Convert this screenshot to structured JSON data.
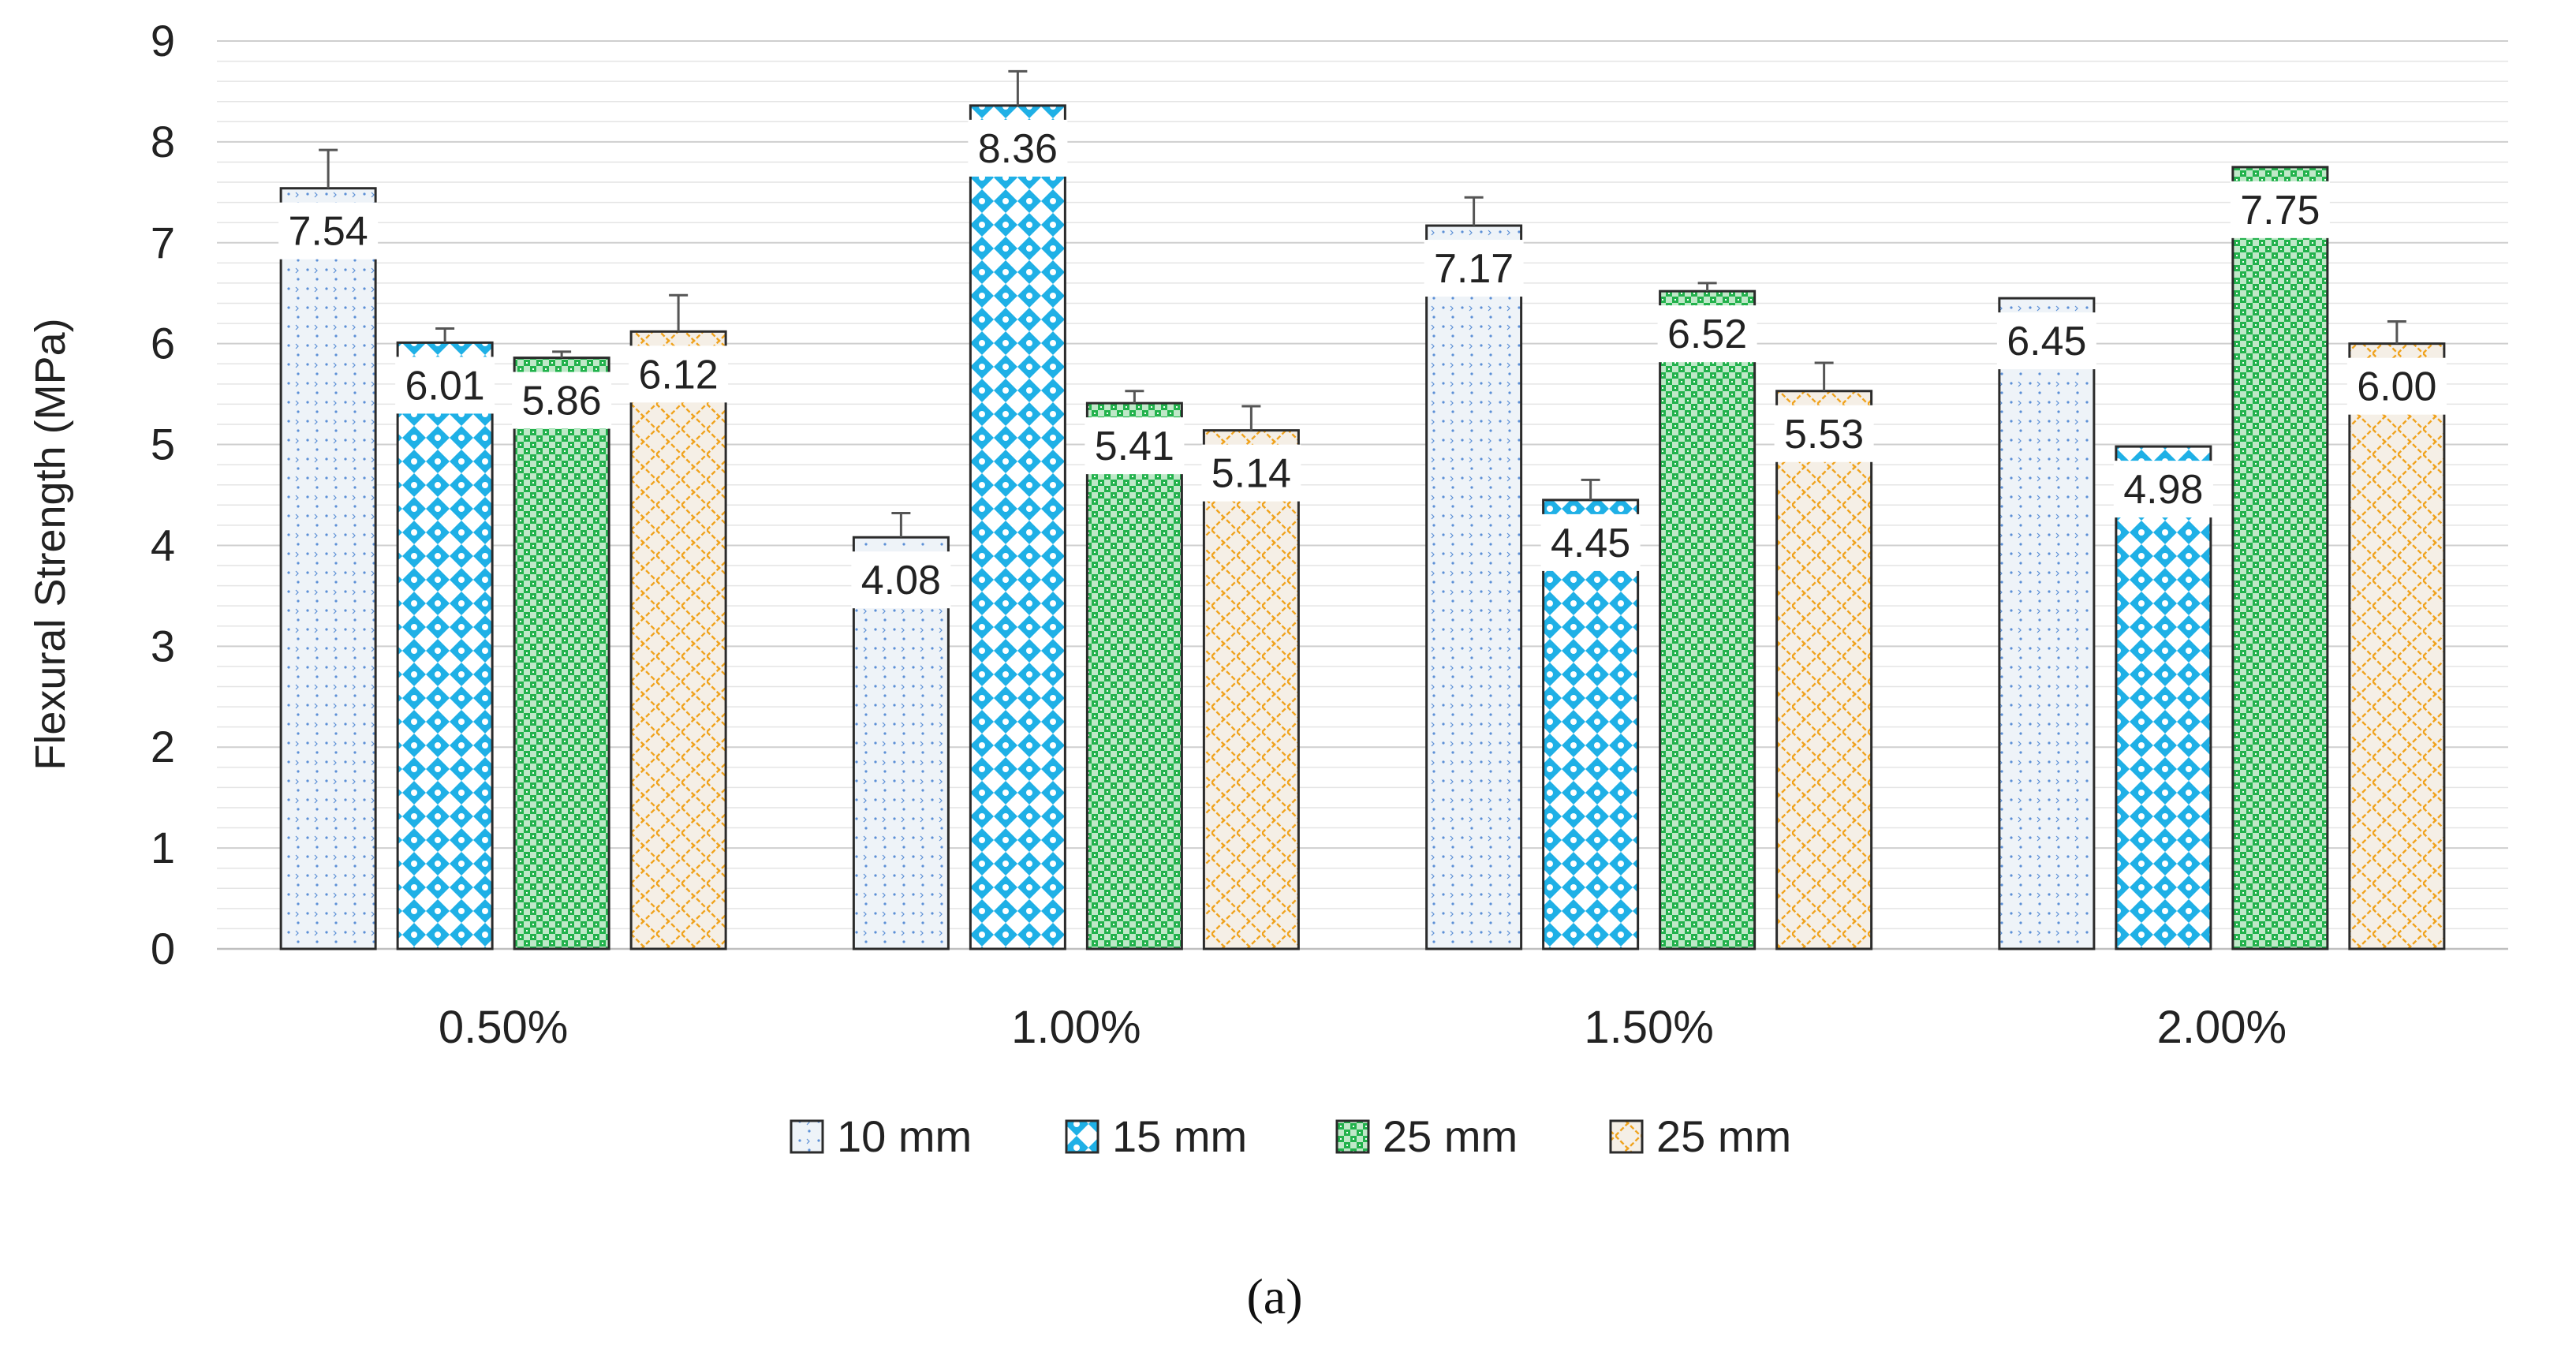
{
  "chart_data": {
    "type": "bar",
    "title": "",
    "xlabel": "",
    "ylabel": "Flexural Strength (MPa)",
    "ylim": [
      0,
      9
    ],
    "yticks": [
      0,
      1,
      2,
      3,
      4,
      5,
      6,
      7,
      8,
      9
    ],
    "grid": true,
    "legend_position": "bottom",
    "categories": [
      "0.50%",
      "1.00%",
      "1.50%",
      "2.00%"
    ],
    "series": [
      {
        "name": "10 mm",
        "pattern": "dots",
        "color": "#5b8fd6",
        "fill_bg": "#eef3f8",
        "values": [
          7.54,
          4.08,
          7.17,
          6.45
        ],
        "labels": [
          "7.54",
          "4.08",
          "7.17",
          "6.45"
        ],
        "errors": [
          0.38,
          0.24,
          0.28,
          0.0
        ]
      },
      {
        "name": "15 mm",
        "pattern": "diamond-check",
        "color": "#1fb0e6",
        "fill_bg": "#e6f6fc",
        "values": [
          6.01,
          8.36,
          4.45,
          4.98
        ],
        "labels": [
          "6.01",
          "8.36",
          "4.45",
          "4.98"
        ],
        "errors": [
          0.14,
          0.34,
          0.2,
          0.0
        ]
      },
      {
        "name": "25 mm",
        "pattern": "check",
        "color": "#22b24c",
        "fill_bg": "#dff3e3",
        "values": [
          5.86,
          5.41,
          6.52,
          7.75
        ],
        "labels": [
          "5.86",
          "5.41",
          "6.52",
          "7.75"
        ],
        "errors": [
          0.06,
          0.12,
          0.08,
          0.0
        ]
      },
      {
        "name": "25 mm",
        "pattern": "crosshatch",
        "color": "#f0a31e",
        "fill_bg": "#f5efe6",
        "values": [
          6.12,
          5.14,
          5.53,
          6.0
        ],
        "labels": [
          "6.12",
          "5.14",
          "5.53",
          "6.00"
        ],
        "errors": [
          0.36,
          0.24,
          0.28,
          0.22
        ]
      }
    ],
    "caption": "(a)"
  }
}
